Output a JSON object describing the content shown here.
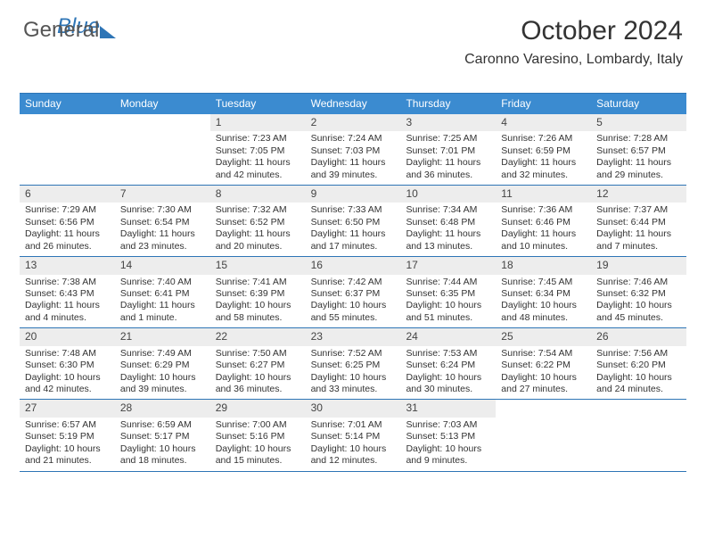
{
  "brand": {
    "word1": "General",
    "word2": "Blue"
  },
  "header": {
    "month_title": "October 2024",
    "location": "Caronno Varesino, Lombardy, Italy"
  },
  "colors": {
    "header_bg": "#3b8bd0",
    "rule": "#2e75b6",
    "daynum_bg": "#ededed",
    "text": "#333333"
  },
  "typography": {
    "title_fontsize": 30,
    "location_fontsize": 16,
    "dow_fontsize": 12,
    "cell_fontsize": 10.5
  },
  "days_of_week": [
    "Sunday",
    "Monday",
    "Tuesday",
    "Wednesday",
    "Thursday",
    "Friday",
    "Saturday"
  ],
  "leading_blanks": 2,
  "days": [
    {
      "n": "1",
      "sunrise": "7:23 AM",
      "sunset": "7:05 PM",
      "daylight": "11 hours and 42 minutes."
    },
    {
      "n": "2",
      "sunrise": "7:24 AM",
      "sunset": "7:03 PM",
      "daylight": "11 hours and 39 minutes."
    },
    {
      "n": "3",
      "sunrise": "7:25 AM",
      "sunset": "7:01 PM",
      "daylight": "11 hours and 36 minutes."
    },
    {
      "n": "4",
      "sunrise": "7:26 AM",
      "sunset": "6:59 PM",
      "daylight": "11 hours and 32 minutes."
    },
    {
      "n": "5",
      "sunrise": "7:28 AM",
      "sunset": "6:57 PM",
      "daylight": "11 hours and 29 minutes."
    },
    {
      "n": "6",
      "sunrise": "7:29 AM",
      "sunset": "6:56 PM",
      "daylight": "11 hours and 26 minutes."
    },
    {
      "n": "7",
      "sunrise": "7:30 AM",
      "sunset": "6:54 PM",
      "daylight": "11 hours and 23 minutes."
    },
    {
      "n": "8",
      "sunrise": "7:32 AM",
      "sunset": "6:52 PM",
      "daylight": "11 hours and 20 minutes."
    },
    {
      "n": "9",
      "sunrise": "7:33 AM",
      "sunset": "6:50 PM",
      "daylight": "11 hours and 17 minutes."
    },
    {
      "n": "10",
      "sunrise": "7:34 AM",
      "sunset": "6:48 PM",
      "daylight": "11 hours and 13 minutes."
    },
    {
      "n": "11",
      "sunrise": "7:36 AM",
      "sunset": "6:46 PM",
      "daylight": "11 hours and 10 minutes."
    },
    {
      "n": "12",
      "sunrise": "7:37 AM",
      "sunset": "6:44 PM",
      "daylight": "11 hours and 7 minutes."
    },
    {
      "n": "13",
      "sunrise": "7:38 AM",
      "sunset": "6:43 PM",
      "daylight": "11 hours and 4 minutes."
    },
    {
      "n": "14",
      "sunrise": "7:40 AM",
      "sunset": "6:41 PM",
      "daylight": "11 hours and 1 minute."
    },
    {
      "n": "15",
      "sunrise": "7:41 AM",
      "sunset": "6:39 PM",
      "daylight": "10 hours and 58 minutes."
    },
    {
      "n": "16",
      "sunrise": "7:42 AM",
      "sunset": "6:37 PM",
      "daylight": "10 hours and 55 minutes."
    },
    {
      "n": "17",
      "sunrise": "7:44 AM",
      "sunset": "6:35 PM",
      "daylight": "10 hours and 51 minutes."
    },
    {
      "n": "18",
      "sunrise": "7:45 AM",
      "sunset": "6:34 PM",
      "daylight": "10 hours and 48 minutes."
    },
    {
      "n": "19",
      "sunrise": "7:46 AM",
      "sunset": "6:32 PM",
      "daylight": "10 hours and 45 minutes."
    },
    {
      "n": "20",
      "sunrise": "7:48 AM",
      "sunset": "6:30 PM",
      "daylight": "10 hours and 42 minutes."
    },
    {
      "n": "21",
      "sunrise": "7:49 AM",
      "sunset": "6:29 PM",
      "daylight": "10 hours and 39 minutes."
    },
    {
      "n": "22",
      "sunrise": "7:50 AM",
      "sunset": "6:27 PM",
      "daylight": "10 hours and 36 minutes."
    },
    {
      "n": "23",
      "sunrise": "7:52 AM",
      "sunset": "6:25 PM",
      "daylight": "10 hours and 33 minutes."
    },
    {
      "n": "24",
      "sunrise": "7:53 AM",
      "sunset": "6:24 PM",
      "daylight": "10 hours and 30 minutes."
    },
    {
      "n": "25",
      "sunrise": "7:54 AM",
      "sunset": "6:22 PM",
      "daylight": "10 hours and 27 minutes."
    },
    {
      "n": "26",
      "sunrise": "7:56 AM",
      "sunset": "6:20 PM",
      "daylight": "10 hours and 24 minutes."
    },
    {
      "n": "27",
      "sunrise": "6:57 AM",
      "sunset": "5:19 PM",
      "daylight": "10 hours and 21 minutes."
    },
    {
      "n": "28",
      "sunrise": "6:59 AM",
      "sunset": "5:17 PM",
      "daylight": "10 hours and 18 minutes."
    },
    {
      "n": "29",
      "sunrise": "7:00 AM",
      "sunset": "5:16 PM",
      "daylight": "10 hours and 15 minutes."
    },
    {
      "n": "30",
      "sunrise": "7:01 AM",
      "sunset": "5:14 PM",
      "daylight": "10 hours and 12 minutes."
    },
    {
      "n": "31",
      "sunrise": "7:03 AM",
      "sunset": "5:13 PM",
      "daylight": "10 hours and 9 minutes."
    }
  ],
  "labels": {
    "sunrise_prefix": "Sunrise: ",
    "sunset_prefix": "Sunset: ",
    "daylight_prefix": "Daylight: "
  }
}
